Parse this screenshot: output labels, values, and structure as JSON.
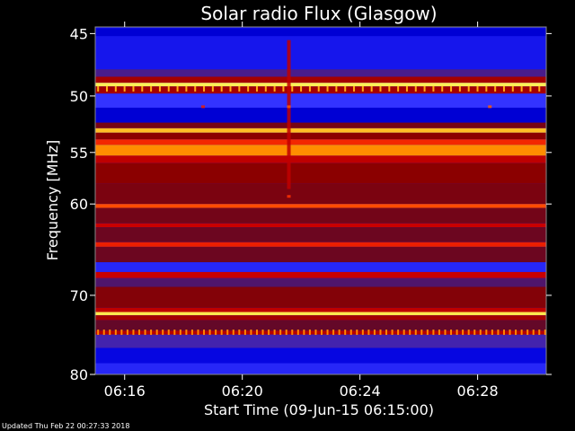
{
  "footer": "Updated Thu Feb 22 00:27:33 2018",
  "chart_data": {
    "type": "heatmap",
    "title": "Solar radio Flux (Glasgow)",
    "xlabel": "Start Time (09-Jun-15 06:15:00)",
    "ylabel": "Frequency [MHz]",
    "xlim": [
      "06:15:00",
      "06:30:20"
    ],
    "ylim": [
      80,
      44.5
    ],
    "y_scale": "log",
    "x_ticks": [
      "06:16",
      "06:20",
      "06:24",
      "06:28"
    ],
    "y_ticks": [
      45,
      50,
      55,
      60,
      70,
      80
    ],
    "colormap": [
      "#000000",
      "#0000dd",
      "#3333ff",
      "#5a0a32",
      "#8b0000",
      "#cc0000",
      "#ff3300",
      "#ff9900",
      "#ffff66"
    ],
    "frequency_bands_mhz": [
      {
        "from": 44.6,
        "to": 45.2,
        "level": 0.12
      },
      {
        "from": 45.2,
        "to": 47.8,
        "level": 0.18
      },
      {
        "from": 47.8,
        "to": 48.4,
        "level": 0.32
      },
      {
        "from": 48.4,
        "to": 48.9,
        "level": 0.55
      },
      {
        "from": 48.9,
        "to": 49.2,
        "level": 0.98
      },
      {
        "from": 49.2,
        "to": 49.8,
        "level": 0.55
      },
      {
        "from": 49.8,
        "to": 51.0,
        "level": 0.25
      },
      {
        "from": 51.0,
        "to": 52.3,
        "level": 0.12
      },
      {
        "from": 52.3,
        "to": 52.8,
        "level": 0.45
      },
      {
        "from": 52.8,
        "to": 53.2,
        "level": 0.92
      },
      {
        "from": 53.2,
        "to": 53.8,
        "level": 0.5
      },
      {
        "from": 53.8,
        "to": 54.3,
        "level": 0.72
      },
      {
        "from": 54.3,
        "to": 55.3,
        "level": 0.86
      },
      {
        "from": 55.3,
        "to": 56.0,
        "level": 0.6
      },
      {
        "from": 56.0,
        "to": 58.0,
        "level": 0.5
      },
      {
        "from": 58.0,
        "to": 60.0,
        "level": 0.46
      },
      {
        "from": 60.0,
        "to": 60.4,
        "level": 0.78
      },
      {
        "from": 60.4,
        "to": 62.0,
        "level": 0.44
      },
      {
        "from": 62.0,
        "to": 62.4,
        "level": 0.62
      },
      {
        "from": 62.4,
        "to": 64.0,
        "level": 0.42
      },
      {
        "from": 64.0,
        "to": 64.5,
        "level": 0.7
      },
      {
        "from": 64.5,
        "to": 66.2,
        "level": 0.42
      },
      {
        "from": 66.2,
        "to": 67.3,
        "level": 0.22
      },
      {
        "from": 67.3,
        "to": 68.0,
        "level": 0.62
      },
      {
        "from": 68.0,
        "to": 69.0,
        "level": 0.34
      },
      {
        "from": 69.0,
        "to": 71.5,
        "level": 0.48
      },
      {
        "from": 71.5,
        "to": 72.0,
        "level": 0.6
      },
      {
        "from": 72.0,
        "to": 72.4,
        "level": 0.97
      },
      {
        "from": 72.4,
        "to": 73.0,
        "level": 0.55
      },
      {
        "from": 73.0,
        "to": 74.3,
        "level": 0.4
      },
      {
        "from": 74.3,
        "to": 74.8,
        "level": 0.58
      },
      {
        "from": 74.8,
        "to": 76.5,
        "level": 0.3
      },
      {
        "from": 76.5,
        "to": 78.5,
        "level": 0.14
      },
      {
        "from": 78.5,
        "to": 80.0,
        "level": 0.22
      }
    ],
    "periodic_spikes": [
      {
        "freq_mhz": 49.4,
        "every_seconds": 18,
        "level": 0.9
      },
      {
        "freq_mhz": 74.5,
        "every_seconds": 12,
        "level": 0.85
      }
    ],
    "bursts": [
      {
        "time": "06:21:35",
        "from_mhz": 45.5,
        "to_mhz": 58.5,
        "level": 0.6
      },
      {
        "time": "06:21:35",
        "from_mhz": 59.1,
        "to_mhz": 59.3,
        "level": 0.75
      },
      {
        "time": "06:18:40",
        "from_mhz": 50.8,
        "to_mhz": 51.0,
        "level": 0.7
      },
      {
        "time": "06:21:35",
        "from_mhz": 50.8,
        "to_mhz": 51.0,
        "level": 0.8
      },
      {
        "time": "06:28:25",
        "from_mhz": 50.8,
        "to_mhz": 51.0,
        "level": 0.8
      }
    ]
  }
}
